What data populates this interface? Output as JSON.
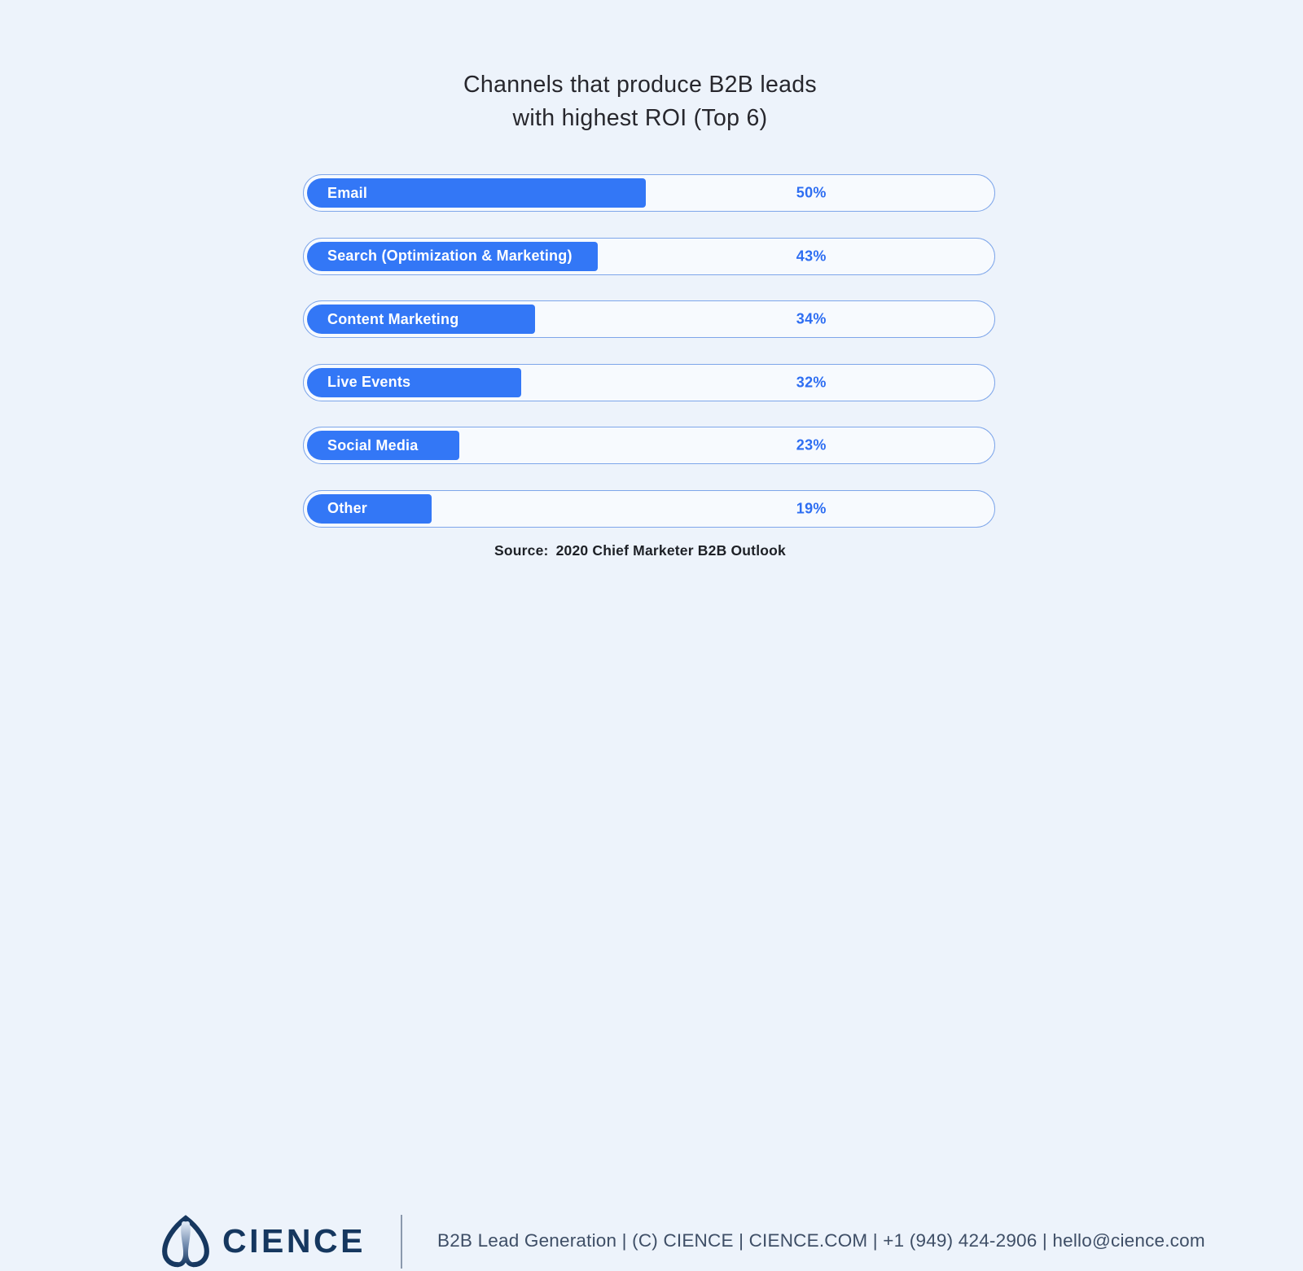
{
  "title": {
    "line1": "Channels that produce B2B leads",
    "line2": "with highest ROI (Top 6)"
  },
  "chart_data": {
    "type": "bar",
    "orientation": "horizontal",
    "title": "Channels that produce B2B leads with highest ROI (Top 6)",
    "categories": [
      "Email",
      "Search (Optimization & Marketing)",
      "Content Marketing",
      "Live Events",
      "Social Media",
      "Other"
    ],
    "values": [
      50,
      43,
      34,
      32,
      23,
      19
    ],
    "value_suffix": "%",
    "xlim": [
      0,
      100
    ],
    "grid": false,
    "legend": false,
    "bar_color": "#3377f6",
    "track_color": "#f7fafe",
    "track_border_color": "#7ea6ea",
    "value_label_color": "#2e6ef2"
  },
  "source": {
    "label": "Source:",
    "text": "2020 Chief Marketer B2B Outlook"
  },
  "footer": {
    "brand": "CIENCE",
    "info": "B2B Lead Generation | (C) CIENCE | CIENCE.COM | +1 (949) 424-2906 | hello@cience.com"
  },
  "colors": {
    "background": "#edf3fb",
    "accent_blue": "#3377f6",
    "value_text_blue": "#2e6ef2",
    "brand_navy": "#15375f",
    "title_text": "#27272d",
    "footer_text": "#3e4e66"
  }
}
